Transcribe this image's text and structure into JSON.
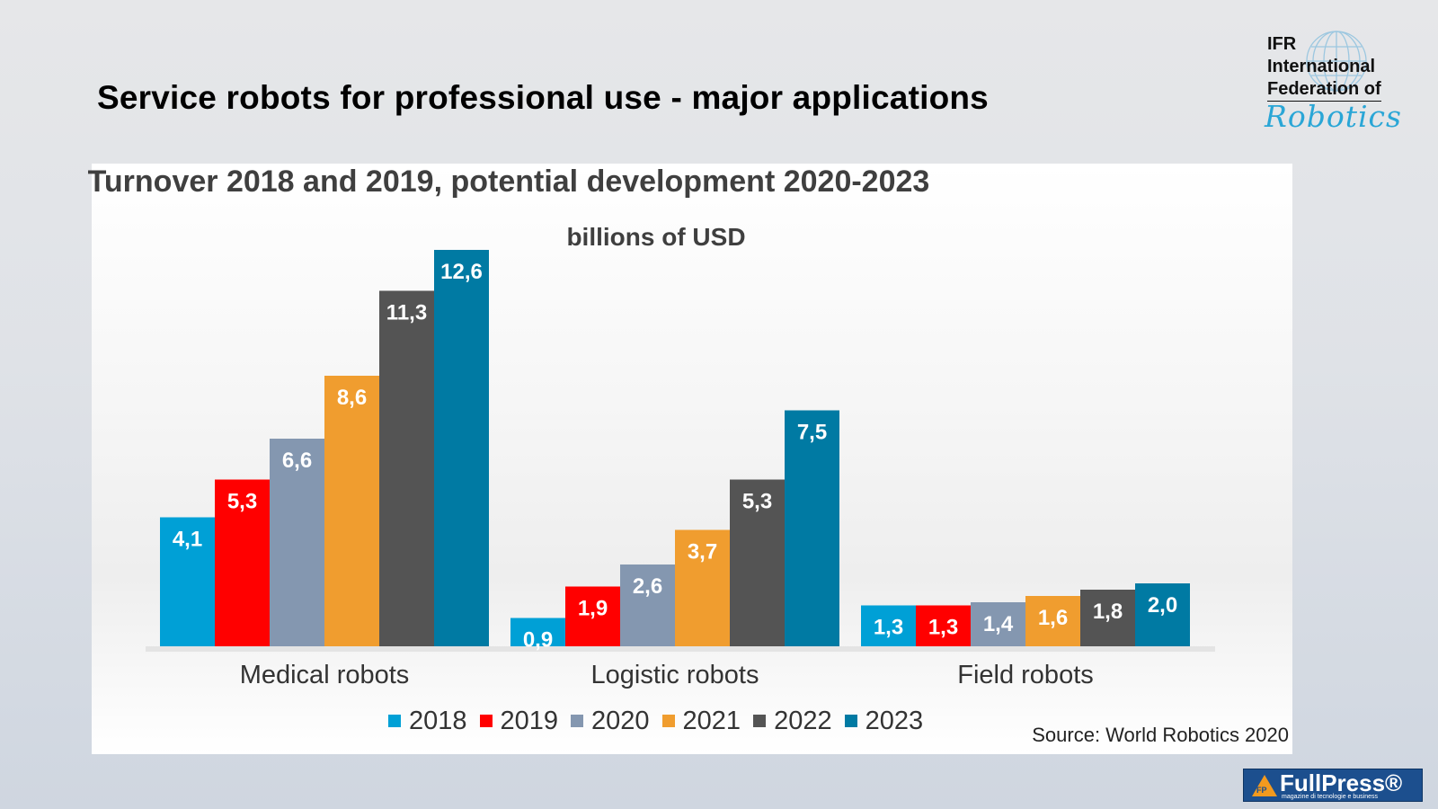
{
  "slide": {
    "title": "Service robots for professional use - major applications",
    "source": "Source: World Robotics 2020"
  },
  "logo": {
    "line1": "IFR",
    "line2": "International",
    "line3": "Federation of",
    "script": "Robotics"
  },
  "badge": {
    "mark": "FP",
    "name": "FullPress®",
    "tagline": "magazine di tecnologie e business"
  },
  "chart_data": {
    "type": "bar",
    "title": "Turnover 2018 and 2019, potential development 2020-2023",
    "subtitle": "billions of USD",
    "xlabel": "",
    "ylabel": "",
    "categories": [
      "Medical robots",
      "Logistic robots",
      "Field robots"
    ],
    "series": [
      {
        "name": "2018",
        "color": "#00a0d6",
        "values": [
          4.1,
          0.9,
          1.3
        ]
      },
      {
        "name": "2019",
        "color": "#ff0000",
        "values": [
          5.3,
          1.9,
          1.3
        ]
      },
      {
        "name": "2020",
        "color": "#8497b0",
        "values": [
          6.6,
          2.6,
          1.4
        ]
      },
      {
        "name": "2021",
        "color": "#f09d2f",
        "values": [
          8.6,
          3.7,
          1.6
        ]
      },
      {
        "name": "2022",
        "color": "#545454",
        "values": [
          11.3,
          5.3,
          1.8
        ]
      },
      {
        "name": "2023",
        "color": "#007aa3",
        "values": [
          12.6,
          7.5,
          2.0
        ]
      }
    ],
    "data_labels": [
      [
        "4,1",
        "0,9",
        "1,3"
      ],
      [
        "5,3",
        "1,9",
        "1,3"
      ],
      [
        "6,6",
        "2,6",
        "1,4"
      ],
      [
        "8,6",
        "3,7",
        "1,6"
      ],
      [
        "11,3",
        "5,3",
        "1,8"
      ],
      [
        "12,6",
        "7,5",
        "2,0"
      ]
    ],
    "ylim": [
      0,
      12.6
    ],
    "grid": false,
    "legend": "bottom"
  }
}
